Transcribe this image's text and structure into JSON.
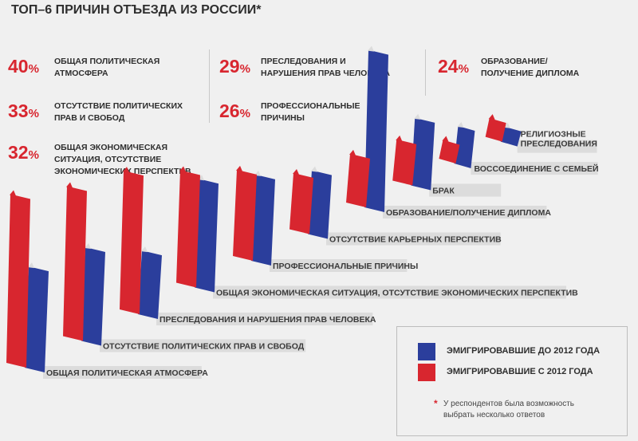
{
  "title": "ТОП–6 ПРИЧИН ОТЪЕЗДА ИЗ РОССИИ*",
  "top_reasons": [
    {
      "value": "40",
      "unit": "%",
      "label": "ОБЩАЯ ПОЛИТИЧЕСКАЯ\nАТМОСФЕРА"
    },
    {
      "value": "33",
      "unit": "%",
      "label": "ОТСУТСТВИЕ ПОЛИТИЧЕСКИХ\nПРАВ И СВОБОД"
    },
    {
      "value": "32",
      "unit": "%",
      "label": "ОБЩАЯ ЭКОНОМИЧЕСКАЯ\nСИТУАЦИЯ, ОТСУТСТВИЕ\nЭКОНОМИЧЕСКИХ ПЕРСПЕКТИВ"
    },
    {
      "value": "29",
      "unit": "%",
      "label": "ПРЕСЛЕДОВАНИЯ И\nНАРУШЕНИЯ ПРАВ ЧЕЛОВЕКА"
    },
    {
      "value": "26",
      "unit": "%",
      "label": "ПРОФЕССИОНАЛЬНЫЕ\nПРИЧИНЫ"
    },
    {
      "value": "24",
      "unit": "%",
      "label": "ОБРАЗОВАНИЕ/\nПОЛУЧЕНИЕ ДИПЛОМА"
    }
  ],
  "chart_data": {
    "type": "bar",
    "title": "",
    "categories": [
      "ОБЩАЯ ПОЛИТИЧЕСКАЯ АТМОСФЕРА",
      "ОТСУТСТВИЕ ПОЛИТИЧЕСКИХ ПРАВ И СВОБОД",
      "ПРЕСЛЕДОВАНИЯ И НАРУШЕНИЯ ПРАВ ЧЕЛОВЕКА",
      "ОБЩАЯ ЭКОНОМИЧЕСКАЯ СИТУАЦИЯ, ОТСУТСТВИЕ ЭКОНОМИЧЕСКИХ ПЕРСПЕКТИВ",
      "ПРОФЕССИОНАЛЬНЫЕ ПРИЧИНЫ",
      "ОТСУТСТВИЕ КАРЬЕРНЫХ ПЕРСПЕКТИВ",
      "ОБРАЗОВАНИЕ/ПОЛУЧЕНИЕ ДИПЛОМА",
      "БРАК",
      "ВОССОЕДИНЕНИЕ С СЕМЬЕЙ",
      "РЕЛИГИОЗНЫЕ\nПРЕСЛЕДОВАНИЯ"
    ],
    "series": [
      {
        "name": "ЭМИГРИРОВАВШИЕ ДО 2012 ГОДА",
        "color": "#2b3e9c",
        "values": [
          27,
          25,
          17,
          29,
          23,
          17,
          42,
          18,
          10,
          4
        ]
      },
      {
        "name": "ЭМИГРИРОВАВШИЕ С 2012 ГОДА",
        "color": "#d8262f",
        "values": [
          45,
          40,
          37,
          30,
          23,
          15,
          13,
          11,
          5,
          5
        ]
      }
    ],
    "ylim": [
      0,
      50
    ],
    "grid": false,
    "legend": "bottom-right"
  },
  "footnote": {
    "star": "*",
    "text": "У респондентов была возможность выбрать несколько ответов"
  }
}
